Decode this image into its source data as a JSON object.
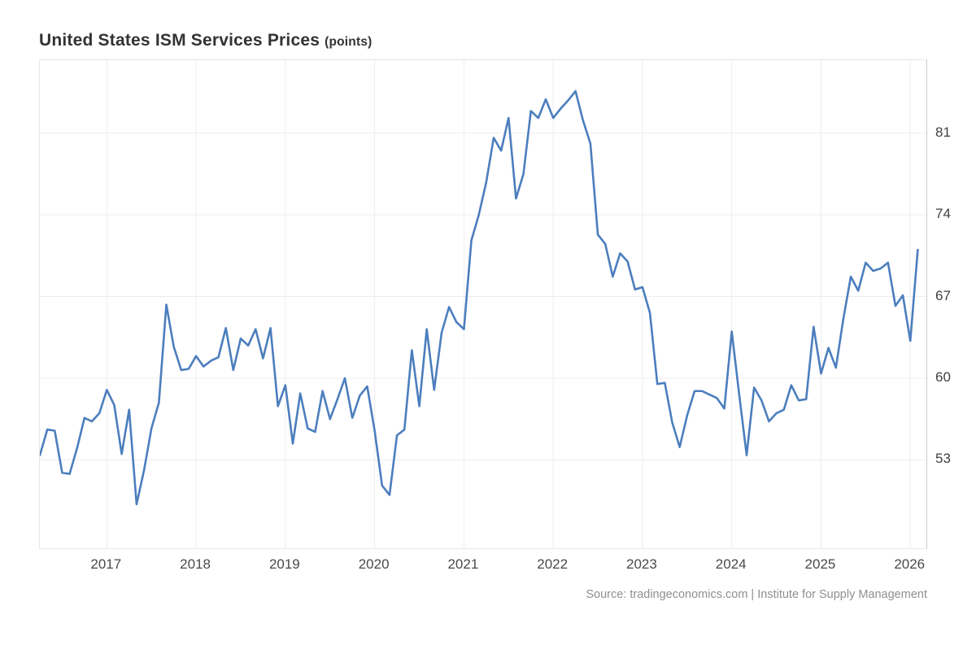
{
  "title": {
    "main": "United States ISM Services Prices",
    "units": "(points)"
  },
  "source": "Source: tradingeconomics.com | Institute for Supply Management",
  "colors": {
    "line": "#4c7ebd",
    "grid": "#ededed",
    "frame": "#e6e6e6",
    "axis": "#c9c9c9",
    "title": "#333333",
    "tick": "#4a4a4a",
    "source": "#8f8f8f"
  },
  "chart_data": {
    "type": "line",
    "title": "United States ISM Services Prices",
    "ylabel": "points",
    "series_name": "ISM Services Prices",
    "frequency": "monthly",
    "start_date": "2016-04",
    "end_date": "2026-02",
    "x_start": 2016.25,
    "xlim": [
      2016.25,
      2026.18
    ],
    "ylim": [
      45.43,
      87.25
    ],
    "x_ticks": [
      2017,
      2018,
      2019,
      2020,
      2021,
      2022,
      2023,
      2024,
      2025,
      2026
    ],
    "y_ticks": [
      53,
      60,
      67,
      74,
      81
    ],
    "grid": true,
    "legend": "none",
    "values": [
      53.4,
      55.6,
      55.5,
      51.9,
      51.8,
      54.0,
      56.6,
      56.3,
      57.0,
      59.0,
      57.7,
      53.5,
      57.3,
      49.2,
      52.1,
      55.7,
      57.9,
      66.3,
      62.7,
      60.7,
      60.8,
      61.9,
      61.0,
      61.5,
      61.8,
      64.3,
      60.7,
      63.4,
      62.8,
      64.2,
      61.7,
      64.3,
      57.6,
      59.4,
      54.4,
      58.7,
      55.7,
      55.4,
      58.9,
      56.5,
      58.2,
      60.0,
      56.6,
      58.5,
      59.3,
      55.5,
      50.8,
      50.0,
      55.1,
      55.6,
      62.4,
      57.6,
      64.2,
      59.0,
      63.9,
      66.1,
      64.8,
      64.2,
      71.8,
      74.0,
      76.8,
      80.6,
      79.5,
      82.3,
      75.4,
      77.5,
      82.9,
      82.3,
      83.9,
      82.3,
      83.1,
      83.8,
      84.6,
      82.1,
      80.1,
      72.3,
      71.5,
      68.7,
      70.7,
      70.0,
      67.6,
      67.8,
      65.6,
      59.5,
      59.6,
      56.2,
      54.1,
      56.8,
      58.9,
      58.9,
      58.6,
      58.3,
      57.4,
      64.0,
      58.6,
      53.4,
      59.2,
      58.1,
      56.3,
      57.0,
      57.3,
      59.4,
      58.1,
      58.2,
      64.4,
      60.4,
      62.6,
      60.9,
      65.1,
      68.7,
      67.5,
      69.9,
      69.2,
      69.4,
      69.9,
      66.2,
      67.1,
      63.2,
      71.0
    ]
  }
}
